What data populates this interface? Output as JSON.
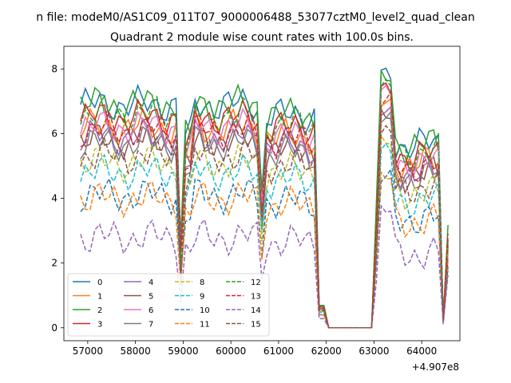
{
  "chart_data": {
    "type": "line",
    "suptitle": "n file: modeM0/AS1C09_011T07_9000006488_53077cztM0_level2_quad_clean",
    "title": "Quadrant 2 module wise count rates with 100.0s bins.",
    "xlabel": "",
    "ylabel": "",
    "x_offset_label": "+4.907e8",
    "xlim": [
      56500,
      64800
    ],
    "ylim": [
      -0.4,
      8.7
    ],
    "xticks": [
      57000,
      58000,
      59000,
      60000,
      61000,
      62000,
      63000,
      64000
    ],
    "yticks": [
      0,
      2,
      4,
      6,
      8
    ],
    "grid": false,
    "legend_location": "lower-left",
    "series": [
      {
        "name": "0",
        "color": "#1f77b4",
        "dash": "solid",
        "gap": 0.0,
        "offset": 0.0
      },
      {
        "name": "1",
        "color": "#ff7f0e",
        "dash": "solid",
        "gap": 0.0,
        "offset": 6.15
      },
      {
        "name": "2",
        "color": "#2ca02c",
        "dash": "solid",
        "gap": 0.0,
        "offset": 12.3
      },
      {
        "name": "3",
        "color": "#d62728",
        "dash": "solid",
        "gap": 0.0,
        "offset": 18.45
      },
      {
        "name": "4",
        "color": "#9467bd",
        "dash": "solid",
        "gap": 0.0,
        "offset": 24.6
      },
      {
        "name": "5",
        "color": "#8c564b",
        "dash": "solid",
        "gap": 0.0,
        "offset": 30.75
      },
      {
        "name": "6",
        "color": "#e377c2",
        "dash": "solid",
        "gap": 0.0,
        "offset": 36.9
      },
      {
        "name": "7",
        "color": "#7f7f7f",
        "dash": "solid",
        "gap": 0.0,
        "offset": 43.05
      },
      {
        "name": "8",
        "color": "#bcbd22",
        "dash": "dashed",
        "gap": 0.0,
        "offset": 49.2
      },
      {
        "name": "9",
        "color": "#17becf",
        "dash": "dashed",
        "gap": 0.0,
        "offset": 55.35
      },
      {
        "name": "10",
        "color": "#1f77b4",
        "dash": "dashed",
        "gap": 0.0,
        "offset": 61.5
      },
      {
        "name": "11",
        "color": "#ff7f0e",
        "dash": "dashed",
        "gap": 0.0,
        "offset": 67.65
      },
      {
        "name": "12",
        "color": "#2ca02c",
        "dash": "dashed",
        "gap": 0.0,
        "offset": 73.8
      },
      {
        "name": "13",
        "color": "#d62728",
        "dash": "dashed",
        "gap": 0.0,
        "offset": 79.95
      },
      {
        "name": "14",
        "color": "#9467bd",
        "dash": "dashed",
        "gap": 0.0,
        "offset": 86.1
      },
      {
        "name": "15",
        "color": "#8c564b",
        "dash": "dashed",
        "gap": 0.0,
        "offset": 92.25
      }
    ],
    "levels": [
      6.9,
      6.2,
      6.9,
      6.5,
      5.9,
      5.8,
      6.2,
      5.7,
      5.1,
      4.8,
      4.1,
      4.0,
      6.6,
      6.1,
      2.8,
      5.3
    ],
    "peak_levels": [
      7.8,
      6.9,
      7.7,
      7.3,
      6.6,
      6.5,
      7.2,
      6.4,
      5.7,
      5.4,
      4.6,
      4.6,
      7.4,
      7.0,
      3.6,
      6.0
    ],
    "time_start": 56850,
    "time_end": 64600,
    "bin_size": 100,
    "shape_segments": [
      {
        "from": 56850,
        "to": 58950,
        "rel": 1.0
      },
      {
        "from": 58950,
        "to": 59050,
        "rel": 0.38
      },
      {
        "from": 59050,
        "to": 59200,
        "rel": 0.85
      },
      {
        "from": 59200,
        "to": 60600,
        "rel": 1.0
      },
      {
        "from": 60600,
        "to": 60700,
        "rel": 0.6
      },
      {
        "from": 60700,
        "to": 60750,
        "rel": 0.15
      },
      {
        "from": 60750,
        "to": 61800,
        "rel": 0.95
      },
      {
        "from": 61800,
        "to": 62000,
        "rel": 0.1
      },
      {
        "from": 62000,
        "to": 63000,
        "rel": 0.0
      },
      {
        "from": 63000,
        "to": 63100,
        "rel": 0.5
      },
      {
        "from": 63100,
        "to": 63400,
        "rel": 1.05
      },
      {
        "from": 63400,
        "to": 64400,
        "rel": 0.82
      },
      {
        "from": 64400,
        "to": 64500,
        "rel": 0.04
      },
      {
        "from": 64500,
        "to": 64600,
        "rel": 0.45
      }
    ]
  }
}
